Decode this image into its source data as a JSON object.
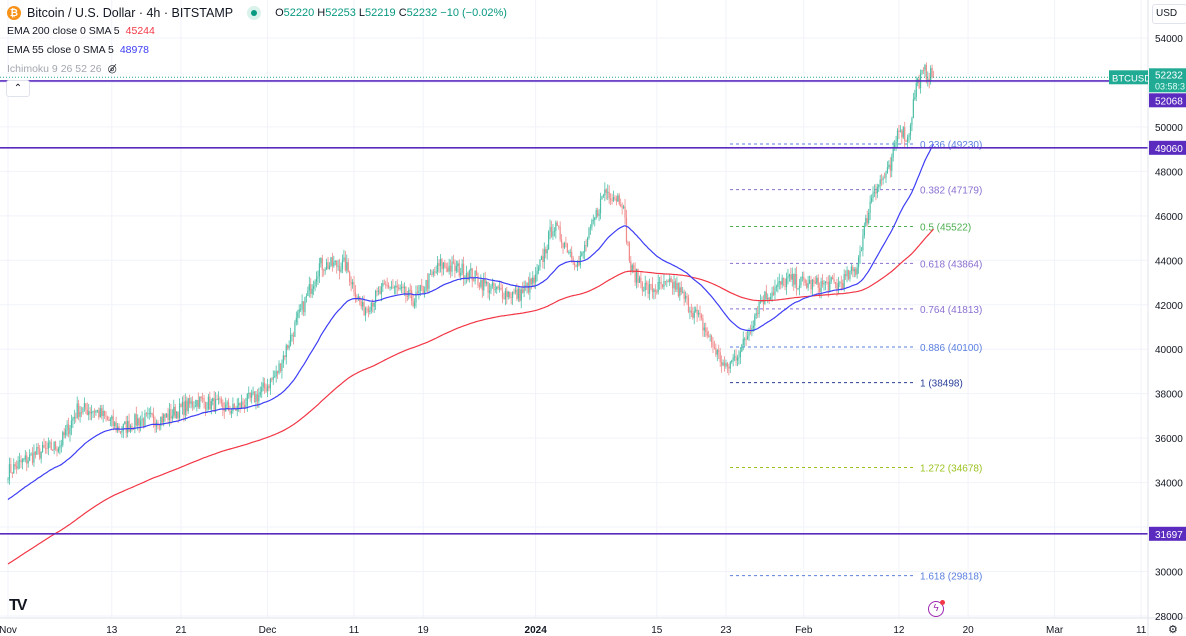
{
  "header": {
    "title": "Bitcoin / U.S. Dollar · 4h · BITSTAMP",
    "coin_glyph": "₿",
    "o_label": "O",
    "o": "52220",
    "h_label": "H",
    "h": "52253",
    "l_label": "L",
    "l": "52219",
    "c_label": "C",
    "c": "52232",
    "change": "−10 (−0.02%)"
  },
  "indicators": [
    {
      "label": "EMA 200 close 0 SMA 5",
      "value": "45244",
      "color": "#f23645"
    },
    {
      "label": "EMA 55 close 0 SMA 5",
      "value": "48978",
      "color": "#3d3df5"
    },
    {
      "label": "Ichimoku 9 26 52 26",
      "value": ""
    }
  ],
  "currency": "USD",
  "collapse_glyph": "⌃",
  "colors": {
    "up": "#4dbfa8",
    "down": "#ef8b8b",
    "ema200": "#f23645",
    "ema55": "#3d3df5",
    "hline": "#5b2bc0",
    "last": "#22ab94"
  },
  "chart_data": {
    "type": "candlestick",
    "title": "Bitcoin / U.S. Dollar · 4h · BITSTAMP",
    "ylim": [
      27800,
      55000
    ],
    "y_ticks": [
      54000,
      52000,
      50000,
      48000,
      46000,
      44000,
      42000,
      40000,
      38000,
      36000,
      34000,
      32000,
      30000,
      28000
    ],
    "x_ticks": [
      {
        "day": 0,
        "label": "Nov"
      },
      {
        "day": 12,
        "label": "13"
      },
      {
        "day": 20,
        "label": "21"
      },
      {
        "day": 30,
        "label": "Dec"
      },
      {
        "day": 40,
        "label": "11"
      },
      {
        "day": 48,
        "label": "19"
      },
      {
        "day": 61,
        "label": "2024",
        "bold": true
      },
      {
        "day": 75,
        "label": "15"
      },
      {
        "day": 83,
        "label": "23"
      },
      {
        "day": 92,
        "label": "Feb"
      },
      {
        "day": 103,
        "label": "12"
      },
      {
        "day": 111,
        "label": "20"
      },
      {
        "day": 121,
        "label": "Mar"
      },
      {
        "day": 131,
        "label": "11"
      }
    ],
    "close_path_days_from_nov1": [
      [
        0,
        34500
      ],
      [
        3,
        35250
      ],
      [
        6,
        35700
      ],
      [
        8,
        37270
      ],
      [
        10,
        37270
      ],
      [
        13,
        36370
      ],
      [
        15,
        36800
      ],
      [
        18,
        36900
      ],
      [
        22,
        37700
      ],
      [
        26,
        37270
      ],
      [
        29,
        37950
      ],
      [
        31,
        38850
      ],
      [
        33,
        40860
      ],
      [
        36,
        43790
      ],
      [
        39,
        43790
      ],
      [
        41,
        41770
      ],
      [
        44,
        42890
      ],
      [
        47,
        42200
      ],
      [
        50,
        43790
      ],
      [
        53,
        43500
      ],
      [
        56,
        42660
      ],
      [
        59,
        42440
      ],
      [
        61,
        43110
      ],
      [
        63,
        45590
      ],
      [
        66,
        43800
      ],
      [
        69,
        47160
      ],
      [
        71,
        46710
      ],
      [
        72,
        43570
      ],
      [
        74,
        42660
      ],
      [
        77,
        42900
      ],
      [
        80,
        41300
      ],
      [
        83,
        39070
      ],
      [
        85,
        40200
      ],
      [
        87,
        42200
      ],
      [
        90,
        43110
      ],
      [
        93,
        42900
      ],
      [
        96,
        42900
      ],
      [
        98,
        43570
      ],
      [
        100,
        47160
      ],
      [
        102,
        48060
      ],
      [
        103,
        50090
      ],
      [
        104,
        49410
      ],
      [
        105,
        51890
      ],
      [
        106,
        52470
      ],
      [
        107,
        52232
      ]
    ],
    "ema200_start": 30300,
    "ema55_start": 33200,
    "horizontal_lines": [
      {
        "price": 52068,
        "label": "52068"
      },
      {
        "price": 49060,
        "label": "49060"
      },
      {
        "price": 31697,
        "label": "31697"
      }
    ],
    "last_price": {
      "symbol": "BTCUSD",
      "price": "52232",
      "countdown": "03:58:3"
    },
    "fib_levels": [
      {
        "ratio": "0.236",
        "price": 49230,
        "color": "#5b7fe0"
      },
      {
        "ratio": "0.382",
        "price": 47179,
        "color": "#8a6fd0"
      },
      {
        "ratio": "0.5",
        "price": 45522,
        "color": "#4caf50"
      },
      {
        "ratio": "0.618",
        "price": 43864,
        "color": "#8a6fd0"
      },
      {
        "ratio": "0.764",
        "price": 41813,
        "color": "#8a6fd0"
      },
      {
        "ratio": "0.886",
        "price": 40100,
        "color": "#5b7fe0"
      },
      {
        "ratio": "1",
        "price": 38498,
        "color": "#2a3f9a"
      },
      {
        "ratio": "1.272",
        "price": 34678,
        "color": "#9bc320"
      },
      {
        "ratio": "1.618",
        "price": 29818,
        "color": "#5b7fe0"
      }
    ]
  }
}
